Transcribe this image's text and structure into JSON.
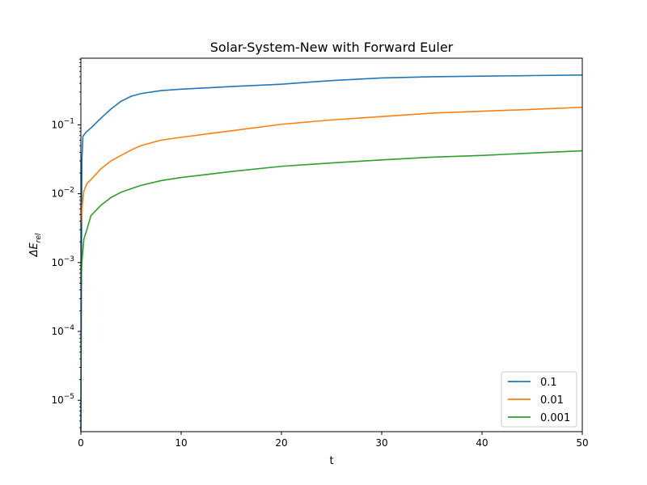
{
  "chart_data": {
    "type": "line",
    "title": "Solar-System-New with Forward Euler",
    "xlabel": "t",
    "ylabel": {
      "base": "ΔE",
      "subscript": "rel"
    },
    "xlim": [
      0,
      50
    ],
    "ylim": [
      3.5e-06,
      0.93
    ],
    "yscale": "log",
    "grid": false,
    "legend_position": "lower-right",
    "x_ticks": [
      {
        "value": 0,
        "label": "0"
      },
      {
        "value": 10,
        "label": "10"
      },
      {
        "value": 20,
        "label": "20"
      },
      {
        "value": 30,
        "label": "30"
      },
      {
        "value": 40,
        "label": "40"
      },
      {
        "value": 50,
        "label": "50"
      }
    ],
    "y_ticks": [
      {
        "value": 1e-05,
        "mantissa": "10",
        "exp": "−5"
      },
      {
        "value": 0.0001,
        "mantissa": "10",
        "exp": "−4"
      },
      {
        "value": 0.001,
        "mantissa": "10",
        "exp": "−3"
      },
      {
        "value": 0.01,
        "mantissa": "10",
        "exp": "−2"
      },
      {
        "value": 0.1,
        "mantissa": "10",
        "exp": "−1"
      }
    ],
    "series": [
      {
        "name": "0.1",
        "color": "#1f77b4",
        "points": [
          [
            0,
            3.5e-06
          ],
          [
            0.1,
            0.03
          ],
          [
            0.2,
            0.068
          ],
          [
            0.5,
            0.078
          ],
          [
            1,
            0.09
          ],
          [
            2,
            0.125
          ],
          [
            3,
            0.17
          ],
          [
            4,
            0.22
          ],
          [
            5,
            0.26
          ],
          [
            6,
            0.285
          ],
          [
            8,
            0.315
          ],
          [
            10,
            0.33
          ],
          [
            15,
            0.36
          ],
          [
            20,
            0.39
          ],
          [
            22,
            0.41
          ],
          [
            25,
            0.44
          ],
          [
            30,
            0.48
          ],
          [
            35,
            0.5
          ],
          [
            40,
            0.51
          ],
          [
            45,
            0.52
          ],
          [
            50,
            0.53
          ]
        ]
      },
      {
        "name": "0.01",
        "color": "#ff7f0e",
        "points": [
          [
            0,
            0.0035
          ],
          [
            0.1,
            0.006
          ],
          [
            0.3,
            0.011
          ],
          [
            0.6,
            0.014
          ],
          [
            1,
            0.016
          ],
          [
            2,
            0.023
          ],
          [
            3,
            0.03
          ],
          [
            4,
            0.036
          ],
          [
            5,
            0.043
          ],
          [
            6,
            0.05
          ],
          [
            8,
            0.06
          ],
          [
            10,
            0.066
          ],
          [
            15,
            0.082
          ],
          [
            20,
            0.102
          ],
          [
            25,
            0.118
          ],
          [
            30,
            0.132
          ],
          [
            35,
            0.148
          ],
          [
            40,
            0.158
          ],
          [
            45,
            0.168
          ],
          [
            50,
            0.18
          ]
        ]
      },
      {
        "name": "0.001",
        "color": "#2ca02c",
        "points": [
          [
            0,
            0.0005
          ],
          [
            0.1,
            0.001
          ],
          [
            0.3,
            0.0022
          ],
          [
            0.6,
            0.003
          ],
          [
            1,
            0.0048
          ],
          [
            2,
            0.0068
          ],
          [
            3,
            0.0088
          ],
          [
            4,
            0.0105
          ],
          [
            5,
            0.0118
          ],
          [
            6,
            0.0132
          ],
          [
            8,
            0.0155
          ],
          [
            10,
            0.0172
          ],
          [
            15,
            0.021
          ],
          [
            20,
            0.025
          ],
          [
            25,
            0.028
          ],
          [
            30,
            0.031
          ],
          [
            35,
            0.034
          ],
          [
            40,
            0.036
          ],
          [
            45,
            0.039
          ],
          [
            50,
            0.042
          ]
        ]
      }
    ]
  }
}
